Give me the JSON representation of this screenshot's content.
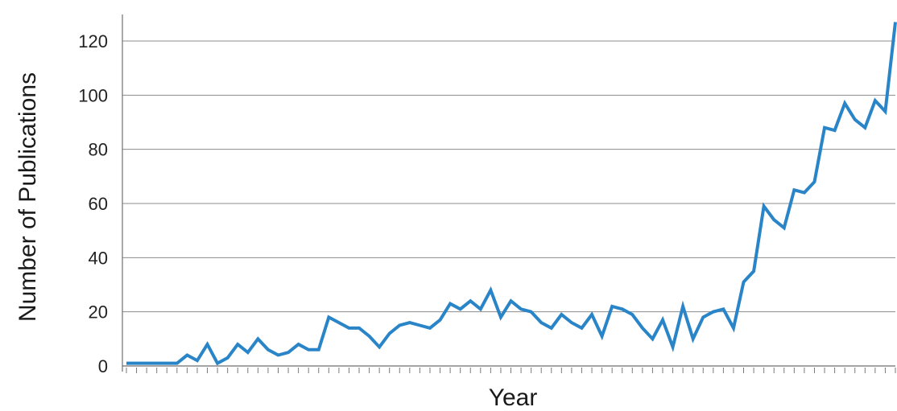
{
  "chart_data": {
    "type": "line",
    "xlabel": "Year",
    "ylabel": "Number of Publications",
    "ylim": [
      0,
      130
    ],
    "yticks": [
      0,
      20,
      40,
      60,
      80,
      100,
      120
    ],
    "grid": "horizontal",
    "line_color": "#2a85c8",
    "series": [
      {
        "values": [
          1,
          1,
          1,
          1,
          1,
          1,
          4,
          2,
          8,
          1,
          3,
          8,
          5,
          10,
          6,
          4,
          5,
          8,
          6,
          6,
          18,
          16,
          14,
          14,
          11,
          7,
          12,
          15,
          16,
          15,
          14,
          17,
          23,
          21,
          24,
          21,
          28,
          18,
          24,
          21,
          20,
          16,
          14,
          19,
          16,
          14,
          19,
          11,
          22,
          21,
          19,
          14,
          10,
          17,
          7,
          22,
          10,
          18,
          20,
          21,
          14,
          31,
          35,
          59,
          54,
          51,
          65,
          64,
          68,
          88,
          87,
          97,
          91,
          88,
          98,
          94,
          127
        ]
      }
    ]
  }
}
